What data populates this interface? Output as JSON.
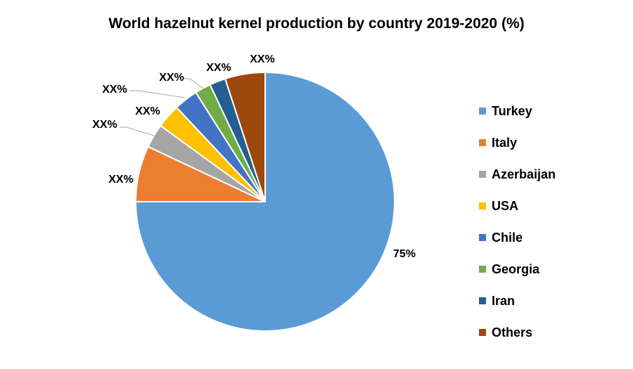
{
  "chart_data": {
    "type": "pie",
    "title": "World hazelnut kernel production by country 2019-2020 (%)",
    "start_angle_deg": 90,
    "direction": "clockwise",
    "legend_position": "right",
    "slices": [
      {
        "name": "Turkey",
        "value": 75,
        "label": "75%",
        "color": "#5B9BD5"
      },
      {
        "name": "Italy",
        "value": 7,
        "label": "XX%",
        "color": "#ED7D31"
      },
      {
        "name": "Azerbaijan",
        "value": 3,
        "label": "XX%",
        "color": "#A5A5A5"
      },
      {
        "name": "USA",
        "value": 3,
        "label": "XX%",
        "color": "#FFC000"
      },
      {
        "name": "Chile",
        "value": 3,
        "label": "XX%",
        "color": "#4472C4"
      },
      {
        "name": "Georgia",
        "value": 2,
        "label": "XX%",
        "color": "#70AD47"
      },
      {
        "name": "Iran",
        "value": 2,
        "label": "XX%",
        "color": "#255E91"
      },
      {
        "name": "Others",
        "value": 5,
        "label": "XX%",
        "color": "#9E480E"
      }
    ]
  }
}
